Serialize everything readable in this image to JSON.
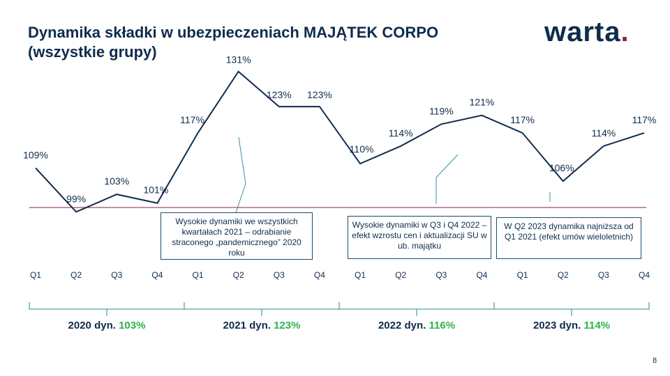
{
  "header": {
    "title_line1": "Dynamika składki w ubezpieczeniach MAJĄTEK CORPO",
    "title_line2": "(wszystkie grupy)",
    "logo_text": "warta",
    "logo_dot": "."
  },
  "colors": {
    "navy": "#0f2c4c",
    "baseline": "#8e1e46",
    "green": "#2eb24b"
  },
  "chart_data": {
    "type": "line",
    "categories": [
      "Q1",
      "Q2",
      "Q3",
      "Q4",
      "Q1",
      "Q2",
      "Q3",
      "Q4",
      "Q1",
      "Q2",
      "Q3",
      "Q4",
      "Q1",
      "Q2",
      "Q3",
      "Q4"
    ],
    "values": [
      109,
      99,
      103,
      101,
      117,
      131,
      123,
      123,
      110,
      114,
      119,
      121,
      117,
      106,
      114,
      117
    ],
    "data_labels": [
      "109%",
      "99%",
      "103%",
      "101%",
      "117%",
      "131%",
      "123%",
      "123%",
      "110%",
      "114%",
      "119%",
      "121%",
      "117%",
      "106%",
      "114%",
      "117%"
    ],
    "reference_line": 100,
    "grid": false,
    "groups": [
      {
        "year": "2020",
        "label": "2020 dyn.",
        "value": "103%"
      },
      {
        "year": "2021",
        "label": "2021 dyn.",
        "value": "123%"
      },
      {
        "year": "2022",
        "label": "2022 dyn.",
        "value": "116%"
      },
      {
        "year": "2023",
        "label": "2023 dyn.",
        "value": "114%"
      }
    ],
    "annotations": [
      {
        "text": "Wysokie dynamiki we wszystkich kwartałach 2021 – odrabianie straconego „pandemicznego” 2020 roku"
      },
      {
        "text": "Wysokie dynamiki w Q3 i Q4 2022 – efekt wzrostu cen i aktualizacji SU w ub. majątku"
      },
      {
        "text": "W Q2 2023 dynamika najniższa od Q1 2021 (efekt umów wieloletnich)"
      }
    ]
  },
  "footer": {
    "page_number": "8"
  }
}
